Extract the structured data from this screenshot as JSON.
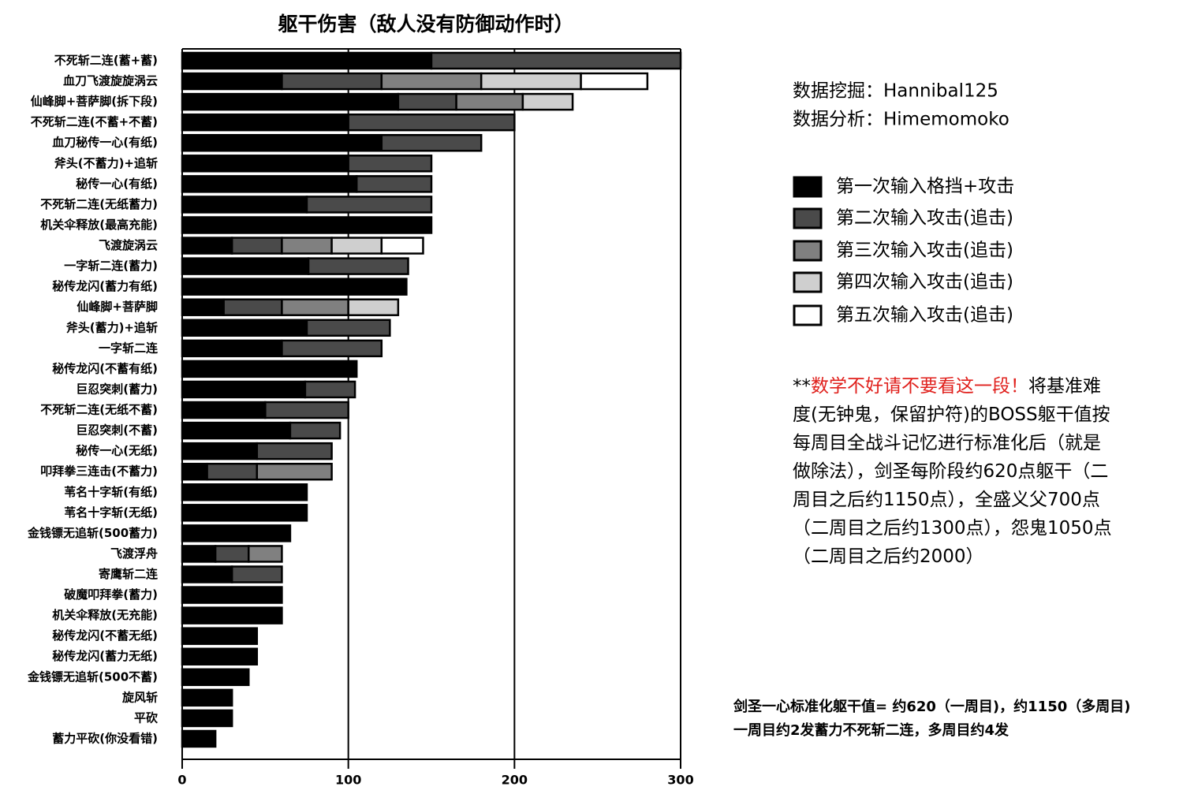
{
  "chart_data": {
    "type": "stacked-barh",
    "title": "躯干伤害（敌人没有防御动作时）",
    "categories": [
      "不死斩二连(蓄+蓄)",
      "血刀飞渡旋旋涡云",
      "仙峰脚+菩萨脚(拆下段)",
      "不死斩二连(不蓄+不蓄)",
      "血刀秘传一心(有纸)",
      "斧头(不蓄力)+追斩",
      "秘传一心(有纸)",
      "不死斩二连(无纸蓄力)",
      "机关伞释放(最高充能)",
      "飞渡旋涡云",
      "一字斩二连(蓄力)",
      "秘传龙闪(蓄力有纸)",
      "仙峰脚+菩萨脚",
      "斧头(蓄力)+追斩",
      "一字斩二连",
      "秘传龙闪(不蓄有纸)",
      "巨忍突刺(蓄力)",
      "不死斩二连(无纸不蓄)",
      "巨忍突刺(不蓄)",
      "秘传一心(无纸)",
      "叩拜拳三连击(不蓄力)",
      "苇名十字斩(有纸)",
      "苇名十字斩(无纸)",
      "金钱镖无追斩(500蓄力)",
      "飞渡浮舟",
      "寄鹰斩二连",
      "破魔叩拜拳(蓄力)",
      "机关伞释放(无充能)",
      "秘传龙闪(不蓄无纸)",
      "秘传龙闪(蓄力无纸)",
      "金钱镖无追斩(500不蓄)",
      "旋风斩",
      "平砍",
      "蓄力平砍(你没看错)"
    ],
    "series": [
      {
        "name": "第一次输入格挡+攻击",
        "color": "#000000",
        "values": [
          150,
          60,
          130,
          100,
          120,
          100,
          105,
          75,
          150,
          30,
          76,
          135,
          25,
          75,
          60,
          105,
          74,
          50,
          65,
          45,
          15,
          75,
          75,
          65,
          20,
          30,
          60,
          60,
          45,
          45,
          40,
          30,
          30,
          20
        ]
      },
      {
        "name": "第二次输入攻击(追击)",
        "color": "#4a4a4a",
        "values": [
          150,
          60,
          35,
          100,
          60,
          50,
          45,
          75,
          null,
          30,
          60,
          null,
          35,
          50,
          60,
          null,
          30,
          50,
          30,
          45,
          30,
          null,
          null,
          null,
          20,
          30,
          null,
          null,
          null,
          null,
          null,
          null,
          null,
          null
        ]
      },
      {
        "name": "第三次输入攻击(追击)",
        "color": "#808080",
        "values": [
          null,
          60,
          40,
          null,
          null,
          null,
          null,
          null,
          null,
          30,
          null,
          null,
          40,
          null,
          null,
          null,
          null,
          null,
          null,
          null,
          45,
          null,
          null,
          null,
          20,
          null,
          null,
          null,
          null,
          null,
          null,
          null,
          null,
          null
        ]
      },
      {
        "name": "第四次输入攻击(追击)",
        "color": "#cfcfcf",
        "values": [
          null,
          60,
          30,
          null,
          null,
          null,
          null,
          null,
          null,
          30,
          null,
          null,
          30,
          null,
          null,
          null,
          null,
          null,
          null,
          null,
          null,
          null,
          null,
          null,
          null,
          null,
          null,
          null,
          null,
          null,
          null,
          null,
          null,
          null
        ]
      },
      {
        "name": "第五次输入攻击(追击)",
        "color": "#ffffff",
        "values": [
          null,
          40,
          null,
          null,
          null,
          null,
          null,
          null,
          null,
          25,
          null,
          null,
          null,
          null,
          null,
          null,
          null,
          null,
          null,
          null,
          null,
          null,
          null,
          null,
          null,
          null,
          null,
          null,
          null,
          null,
          null,
          null,
          null,
          null
        ]
      }
    ],
    "xlim": [
      0,
      300
    ],
    "xticks": [
      0,
      100,
      200,
      300
    ],
    "grid": true,
    "credits": [
      "数据挖掘：Hannibal125",
      "数据分析：Himemomoko"
    ],
    "note": {
      "prefix": "**",
      "highlight": "数学不好请不要看这一段！",
      "text": "将基准难度(无钟鬼，保留护符)的BOSS躯干值按每周目全战斗记忆进行标准化后（就是做除法），剑圣每阶段约620点躯干（二周目之后约1150点），全盛义父700点（二周目之后约1300点），怨鬼1050点（二周目之后约2000）"
    },
    "footnote": [
      "剑圣一心标准化躯干值= 约620（一周目)，约1150（多周目)",
      "一周目约2发蓄力不死斩二连，多周目约4发"
    ]
  }
}
